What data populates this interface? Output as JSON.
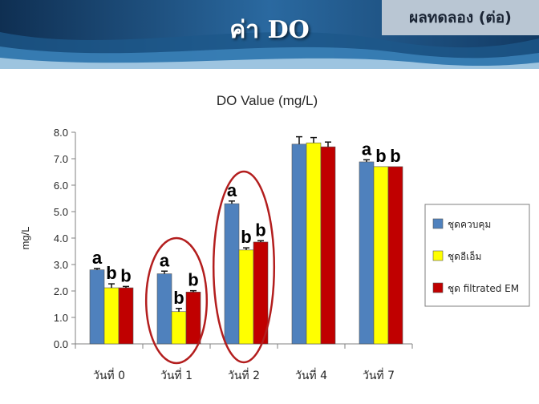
{
  "slide": {
    "title": "ค่า DO",
    "tag": "ผลทดลอง (ต่อ)"
  },
  "colors": {
    "header_dark": "#123a63",
    "header_mid": "#2f73a8",
    "header_light": "#9fc3dd",
    "tag_bg": "#b9c6d3",
    "highlight_ellipse": "#b31e1e"
  },
  "chart_data": {
    "type": "bar",
    "title": "DO Value (mg/L)",
    "xlabel": "",
    "ylabel": "mg/L",
    "ylim": [
      0,
      8
    ],
    "yticks": [
      "0.0",
      "1.0",
      "2.0",
      "3.0",
      "4.0",
      "5.0",
      "6.0",
      "7.0",
      "8.0"
    ],
    "categories": [
      "วันที่ 0",
      "วันที่ 1",
      "วันที่ 2",
      "วันที่ 4",
      "วันที่ 7"
    ],
    "series": [
      {
        "name": "ชุดควบคุม",
        "color": "#4f81bd",
        "values": [
          2.8,
          2.65,
          5.3,
          7.55,
          6.88
        ],
        "errors": [
          0.05,
          0.1,
          0.1,
          0.28,
          0.08
        ]
      },
      {
        "name": "ชุดอีเอ็ม",
        "color": "#ffff00",
        "values": [
          2.12,
          1.22,
          3.55,
          7.6,
          6.7
        ],
        "errors": [
          0.15,
          0.12,
          0.08,
          0.2,
          0.0
        ]
      },
      {
        "name": "ชุด filtrated EM",
        "color": "#c00000",
        "values": [
          2.12,
          1.96,
          3.85,
          7.45,
          6.7
        ],
        "errors": [
          0.05,
          0.05,
          0.05,
          0.18,
          0.0
        ]
      }
    ],
    "grid": false,
    "legend": "right",
    "annotations": [
      {
        "category": 0,
        "series": 0,
        "text": "a"
      },
      {
        "category": 0,
        "series": 1,
        "text": "b"
      },
      {
        "category": 0,
        "series": 2,
        "text": "b"
      },
      {
        "category": 1,
        "series": 0,
        "text": "a"
      },
      {
        "category": 1,
        "series": 1,
        "text": "b"
      },
      {
        "category": 1,
        "series": 2,
        "text": "b"
      },
      {
        "category": 2,
        "series": 0,
        "text": "a"
      },
      {
        "category": 2,
        "series": 1,
        "text": "b"
      },
      {
        "category": 2,
        "series": 2,
        "text": "b"
      },
      {
        "category": 4,
        "series": 0,
        "text": "a"
      },
      {
        "category": 4,
        "series": 1,
        "text": "b"
      },
      {
        "category": 4,
        "series": 2,
        "text": "b"
      }
    ],
    "highlighted_categories": [
      1,
      2
    ]
  }
}
